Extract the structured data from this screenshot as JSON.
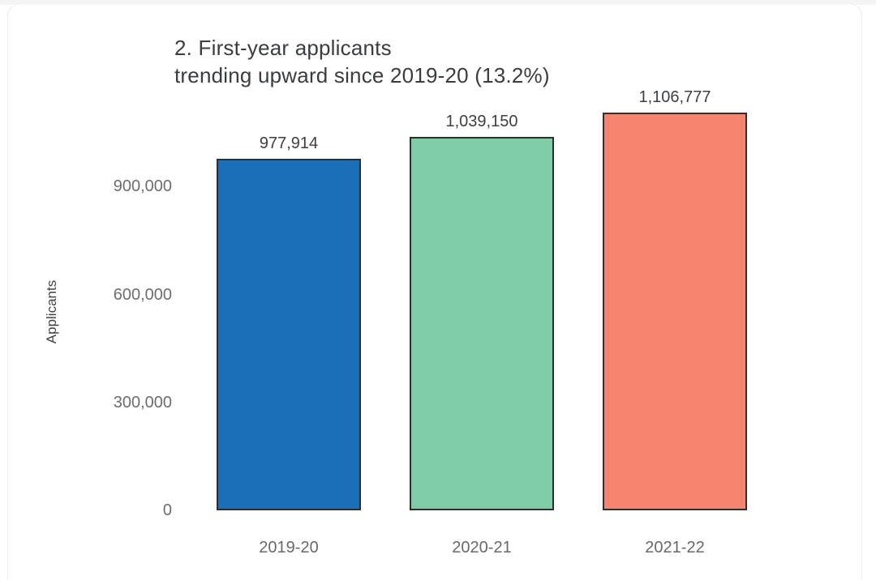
{
  "chart_data": {
    "type": "bar",
    "title": "2. First-year applicants trending upward since 2019-20 (13.2%)",
    "title_lines": [
      "2. First-year applicants",
      "trending upward since 2019-20 (13.2%)"
    ],
    "ylabel": "Applicants",
    "xlabel": "",
    "categories": [
      "2019-20",
      "2020-21",
      "2021-22"
    ],
    "values": [
      977914,
      1039150,
      1106777
    ],
    "value_labels": [
      "977,914",
      "1,039,150",
      "1,106,777"
    ],
    "bar_colors": [
      "#1b6fb9",
      "#7ecda6",
      "#f6846f"
    ],
    "bar_border_color": "#2e2e2e",
    "yticks": [
      {
        "value": 0,
        "label": "0"
      },
      {
        "value": 300000,
        "label": "300,000"
      },
      {
        "value": 600000,
        "label": "600,000"
      },
      {
        "value": 900000,
        "label": "900,000"
      }
    ],
    "ylim": [
      0,
      1150000
    ],
    "grid": false,
    "legend_position": "none"
  }
}
